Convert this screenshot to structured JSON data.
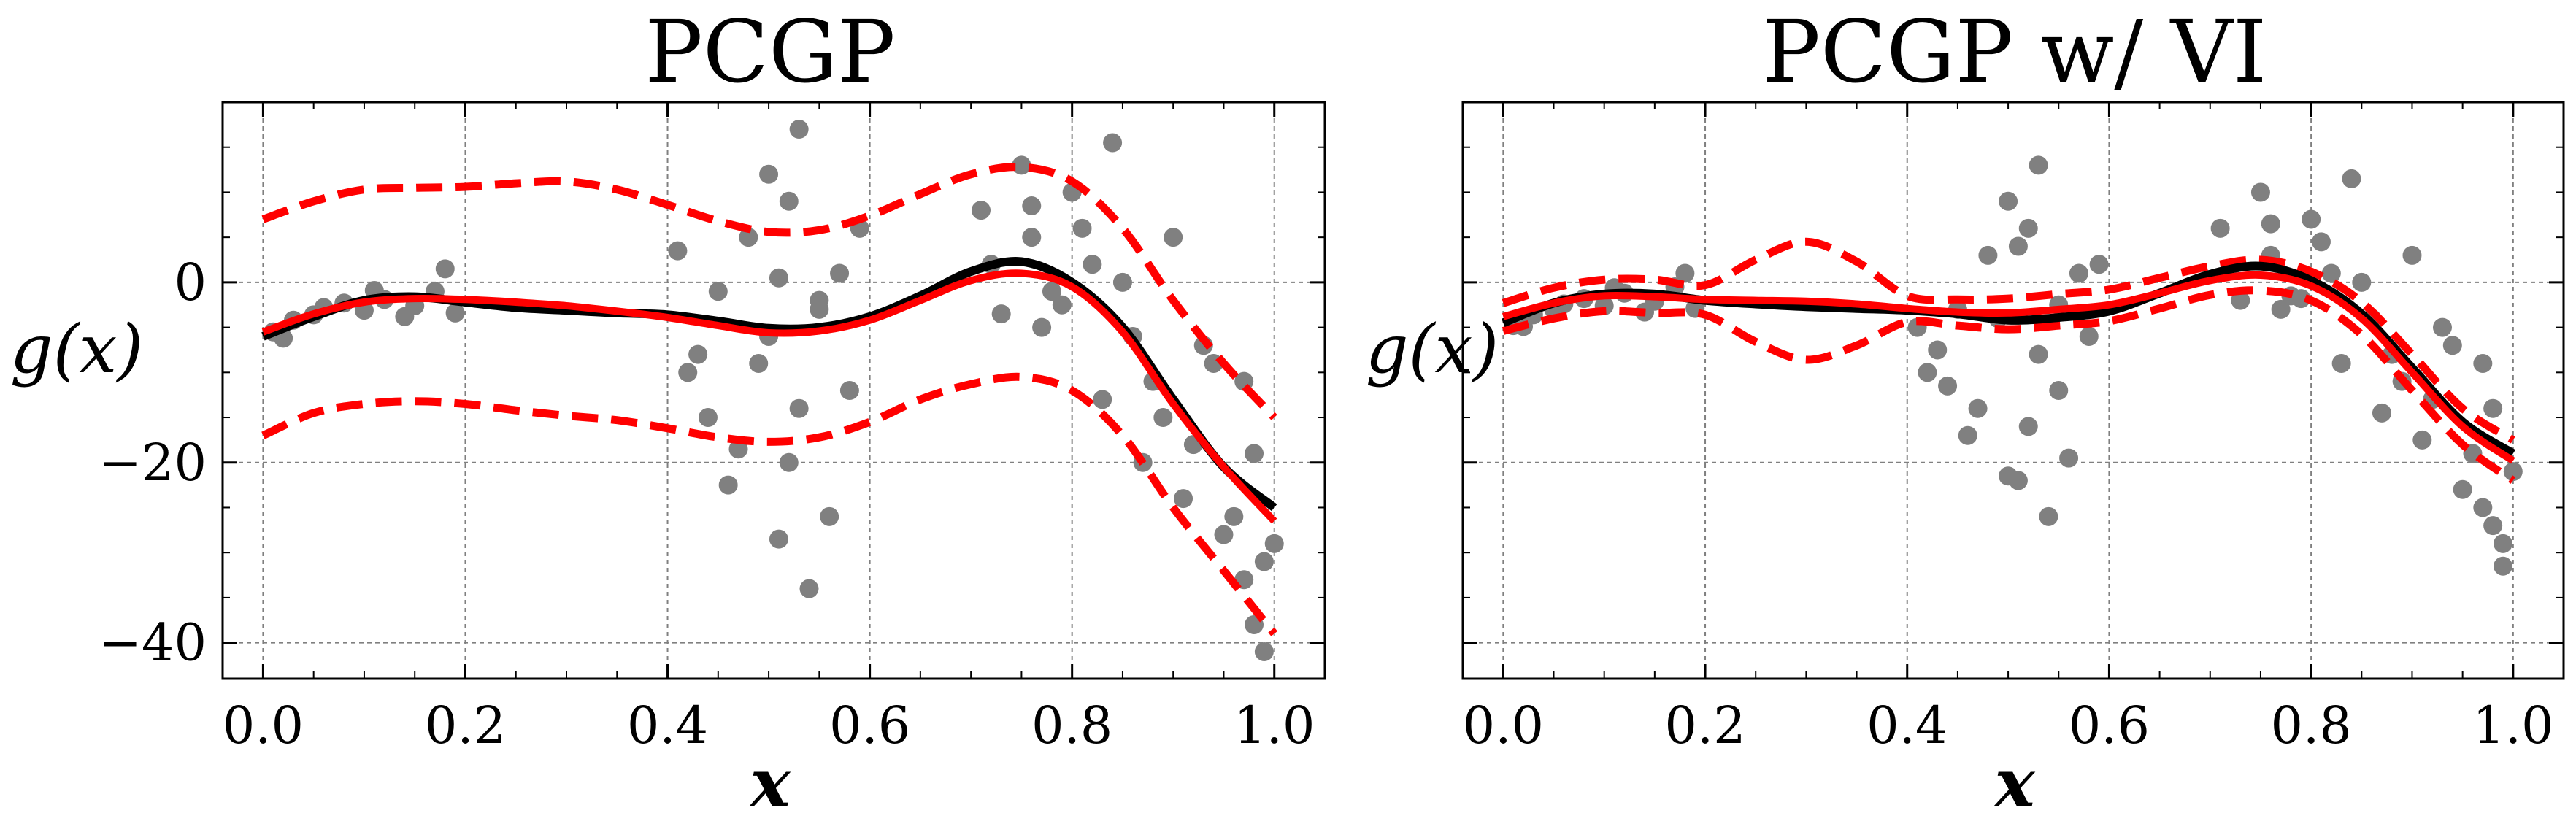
{
  "chart_data": [
    {
      "type": "line",
      "title": "PCGP",
      "xlabel": "x",
      "ylabel": "g(x)",
      "xlim": [
        -0.04,
        1.05
      ],
      "ylim": [
        -44,
        20
      ],
      "xticks": [
        0.0,
        0.2,
        0.4,
        0.6,
        0.8,
        1.0
      ],
      "yticks": [
        0,
        -20,
        -40
      ],
      "grid": true,
      "scatter_color": "#808080",
      "data_regions": [
        [
          0.0,
          0.2
        ],
        [
          0.4,
          0.6
        ],
        [
          0.7,
          1.0
        ]
      ],
      "truth": {
        "color": "#000000",
        "x": [
          0,
          0.05,
          0.1,
          0.15,
          0.2,
          0.25,
          0.3,
          0.35,
          0.4,
          0.45,
          0.5,
          0.55,
          0.6,
          0.65,
          0.7,
          0.75,
          0.8,
          0.85,
          0.9,
          0.95,
          1.0
        ],
        "y": [
          -6,
          -3.8,
          -2,
          -1.6,
          -2.2,
          -2.8,
          -3.1,
          -3.4,
          -3.6,
          -4.3,
          -5.1,
          -5.0,
          -3.8,
          -1.5,
          1.2,
          2.3,
          0.0,
          -5.0,
          -13.0,
          -20.5,
          -25.0
        ]
      },
      "mean": {
        "color": "#ff0000",
        "x": [
          0,
          0.05,
          0.1,
          0.15,
          0.2,
          0.25,
          0.3,
          0.35,
          0.4,
          0.45,
          0.5,
          0.55,
          0.6,
          0.65,
          0.7,
          0.75,
          0.8,
          0.85,
          0.9,
          0.95,
          1.0
        ],
        "y": [
          -5.5,
          -3.5,
          -2.2,
          -1.8,
          -1.9,
          -2.2,
          -2.6,
          -3.2,
          -3.9,
          -4.8,
          -5.6,
          -5.4,
          -4.2,
          -2.0,
          0.2,
          1.0,
          -0.5,
          -5.5,
          -13.5,
          -20.5,
          -26.5
        ]
      },
      "upper_band": {
        "color": "#ff0000",
        "x": [
          0,
          0.05,
          0.1,
          0.15,
          0.2,
          0.25,
          0.3,
          0.35,
          0.4,
          0.45,
          0.5,
          0.55,
          0.6,
          0.65,
          0.7,
          0.75,
          0.8,
          0.85,
          0.9,
          0.95,
          1.0
        ],
        "y": [
          7,
          9,
          10.3,
          10.5,
          10.6,
          11,
          11.2,
          10.3,
          8.6,
          6.8,
          5.6,
          5.8,
          7.4,
          9.8,
          12.0,
          12.8,
          11.2,
          6.0,
          -2.0,
          -9.0,
          -15.0
        ]
      },
      "lower_band": {
        "color": "#ff0000",
        "x": [
          0,
          0.05,
          0.1,
          0.15,
          0.2,
          0.25,
          0.3,
          0.35,
          0.4,
          0.45,
          0.5,
          0.55,
          0.6,
          0.65,
          0.7,
          0.75,
          0.8,
          0.85,
          0.9,
          0.95,
          1.0
        ],
        "y": [
          -17,
          -14.5,
          -13.5,
          -13.2,
          -13.5,
          -14.2,
          -14.8,
          -15.3,
          -16.2,
          -17.2,
          -17.7,
          -17.2,
          -15.5,
          -13.0,
          -11.3,
          -10.5,
          -12.0,
          -17.0,
          -25.0,
          -32.0,
          -39.0
        ]
      },
      "observations": {
        "x": [
          0.01,
          0.03,
          0.05,
          0.08,
          0.1,
          0.12,
          0.15,
          0.17,
          0.19,
          0.02,
          0.06,
          0.11,
          0.14,
          0.18,
          0.41,
          0.43,
          0.45,
          0.46,
          0.48,
          0.5,
          0.51,
          0.52,
          0.53,
          0.54,
          0.55,
          0.56,
          0.58,
          0.59,
          0.42,
          0.47,
          0.5,
          0.52,
          0.53,
          0.55,
          0.57,
          0.44,
          0.49,
          0.51,
          0.71,
          0.73,
          0.75,
          0.76,
          0.78,
          0.8,
          0.82,
          0.84,
          0.86,
          0.88,
          0.9,
          0.92,
          0.94,
          0.96,
          0.97,
          0.98,
          0.99,
          1.0,
          0.72,
          0.77,
          0.83,
          0.85,
          0.87,
          0.89,
          0.91,
          0.93,
          0.95,
          0.97,
          0.98,
          0.99,
          0.76,
          0.79,
          0.81
        ],
        "y": [
          -5.5,
          -4.2,
          -3.6,
          -2.3,
          -3.1,
          -1.9,
          -2.6,
          -1.0,
          -3.4,
          -6.2,
          -2.8,
          -0.9,
          -3.8,
          1.5,
          3.5,
          -8.0,
          -1.0,
          -22.5,
          5.0,
          12.0,
          -28.5,
          9.0,
          17.0,
          -34.0,
          -2.0,
          -26.0,
          -12.0,
          6.0,
          -10.0,
          -18.5,
          -6.0,
          -20.0,
          -14.0,
          -3.0,
          1.0,
          -15.0,
          -9.0,
          0.5,
          8.0,
          -3.5,
          13.0,
          5.0,
          -1.0,
          10.0,
          2.0,
          15.5,
          -6.0,
          -11.0,
          5.0,
          -18.0,
          -9.0,
          -26.0,
          -33.0,
          -38.0,
          -41.0,
          -29.0,
          2.0,
          -5.0,
          -13.0,
          0.0,
          -20.0,
          -15.0,
          -24.0,
          -7.0,
          -28.0,
          -11.0,
          -19.0,
          -31.0,
          8.5,
          -2.5,
          6.0
        ]
      }
    },
    {
      "type": "line",
      "title": "PCGP w/ VI",
      "xlabel": "x",
      "ylabel": "g(x)",
      "xlim": [
        -0.04,
        1.05
      ],
      "ylim": [
        -44,
        20
      ],
      "xticks": [
        0.0,
        0.2,
        0.4,
        0.6,
        0.8,
        1.0
      ],
      "yticks": [
        0,
        -20,
        -40
      ],
      "grid": true,
      "scatter_color": "#808080",
      "data_regions": [
        [
          0.0,
          0.2
        ],
        [
          0.4,
          0.6
        ],
        [
          0.7,
          1.0
        ]
      ],
      "truth": {
        "color": "#000000",
        "x": [
          0,
          0.05,
          0.1,
          0.15,
          0.2,
          0.25,
          0.3,
          0.35,
          0.4,
          0.45,
          0.5,
          0.55,
          0.6,
          0.65,
          0.7,
          0.75,
          0.8,
          0.85,
          0.9,
          0.95,
          1.0
        ],
        "y": [
          -4.5,
          -2.3,
          -1.3,
          -1.3,
          -2.0,
          -2.4,
          -2.7,
          -2.9,
          -3.1,
          -3.5,
          -4.2,
          -3.9,
          -3.2,
          -1.2,
          0.9,
          1.8,
          0.2,
          -3.5,
          -9.5,
          -15.5,
          -19.0
        ]
      },
      "mean": {
        "color": "#ff0000",
        "x": [
          0,
          0.05,
          0.1,
          0.15,
          0.2,
          0.25,
          0.3,
          0.35,
          0.4,
          0.45,
          0.5,
          0.55,
          0.6,
          0.65,
          0.7,
          0.75,
          0.8,
          0.85,
          0.9,
          0.95,
          1.0
        ],
        "y": [
          -3.8,
          -2.3,
          -1.5,
          -1.6,
          -1.9,
          -2.0,
          -2.1,
          -2.4,
          -2.9,
          -3.3,
          -3.4,
          -3.0,
          -2.5,
          -1.2,
          0.2,
          0.8,
          -0.4,
          -4.0,
          -10.0,
          -16.0,
          -19.8
        ]
      },
      "upper_band": {
        "color": "#ff0000",
        "x": [
          0,
          0.05,
          0.1,
          0.15,
          0.2,
          0.25,
          0.3,
          0.35,
          0.4,
          0.45,
          0.5,
          0.55,
          0.6,
          0.65,
          0.7,
          0.75,
          0.8,
          0.85,
          0.9,
          0.95,
          1.0
        ],
        "y": [
          -2.3,
          -0.6,
          0.3,
          0.3,
          -0.3,
          2.5,
          4.5,
          2.3,
          -1.5,
          -1.9,
          -1.8,
          -1.3,
          -0.8,
          0.5,
          1.8,
          2.5,
          1.2,
          -2.2,
          -8.0,
          -14.0,
          -17.5
        ]
      },
      "lower_band": {
        "color": "#ff0000",
        "x": [
          0,
          0.05,
          0.1,
          0.15,
          0.2,
          0.25,
          0.3,
          0.35,
          0.4,
          0.45,
          0.5,
          0.55,
          0.6,
          0.65,
          0.7,
          0.75,
          0.8,
          0.85,
          0.9,
          0.95,
          1.0
        ],
        "y": [
          -5.4,
          -4.0,
          -3.2,
          -3.4,
          -3.6,
          -6.6,
          -8.6,
          -7.0,
          -4.4,
          -4.8,
          -5.2,
          -4.8,
          -4.3,
          -2.9,
          -1.4,
          -0.9,
          -2.0,
          -5.8,
          -12.0,
          -18.0,
          -22.0
        ]
      },
      "observations": {
        "x": [
          0.01,
          0.03,
          0.05,
          0.08,
          0.1,
          0.12,
          0.15,
          0.17,
          0.19,
          0.02,
          0.06,
          0.11,
          0.14,
          0.18,
          0.41,
          0.43,
          0.45,
          0.46,
          0.48,
          0.5,
          0.51,
          0.52,
          0.53,
          0.54,
          0.55,
          0.56,
          0.58,
          0.59,
          0.42,
          0.47,
          0.5,
          0.52,
          0.53,
          0.55,
          0.57,
          0.44,
          0.49,
          0.51,
          0.71,
          0.73,
          0.75,
          0.76,
          0.78,
          0.8,
          0.82,
          0.84,
          0.86,
          0.88,
          0.9,
          0.92,
          0.94,
          0.96,
          0.97,
          0.98,
          0.99,
          1.0,
          0.72,
          0.77,
          0.83,
          0.85,
          0.87,
          0.89,
          0.91,
          0.93,
          0.95,
          0.97,
          0.98,
          0.99,
          0.76,
          0.79,
          0.81
        ],
        "y": [
          -4.8,
          -3.6,
          -3.0,
          -1.8,
          -2.6,
          -1.2,
          -2.1,
          -0.5,
          -2.9,
          -4.9,
          -2.4,
          -0.6,
          -3.3,
          1.0,
          -5.0,
          -7.5,
          -3.0,
          -17.0,
          3.0,
          -21.5,
          -22.0,
          6.0,
          13.0,
          -26.0,
          -12.0,
          -19.5,
          -6.0,
          2.0,
          -10.0,
          -14.0,
          9.0,
          -16.0,
          -8.0,
          -2.5,
          1.0,
          -11.5,
          -4.0,
          4.0,
          6.0,
          -2.0,
          10.0,
          3.0,
          -1.5,
          7.0,
          1.0,
          11.5,
          -4.0,
          -8.0,
          3.0,
          -13.0,
          -7.0,
          -19.0,
          -25.0,
          -27.0,
          -31.5,
          -21.0,
          1.5,
          -3.0,
          -9.0,
          0.0,
          -14.5,
          -11.0,
          -17.5,
          -5.0,
          -23.0,
          -9.0,
          -14.0,
          -29.0,
          6.5,
          -1.8,
          4.5
        ]
      }
    }
  ]
}
